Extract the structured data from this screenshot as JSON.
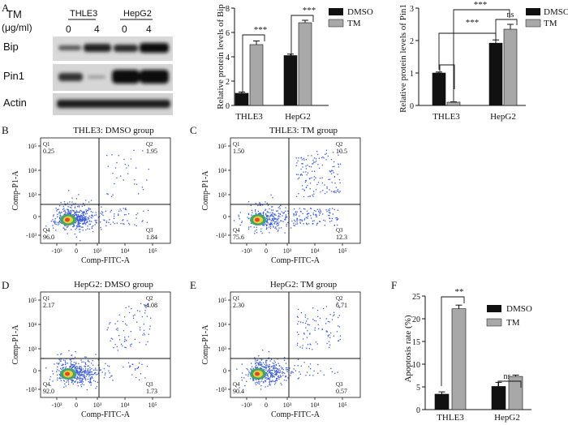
{
  "panels": {
    "A": "A",
    "B": "B",
    "C": "C",
    "D": "D",
    "E": "E",
    "F": "F"
  },
  "western_blot": {
    "tm_label": "TM",
    "unit_label": "(μg/ml)",
    "cell_lines": [
      "THLE3",
      "HepG2"
    ],
    "doses": [
      "0",
      "4",
      "0",
      "4"
    ],
    "proteins": [
      "Bip",
      "Pin1",
      "Actin"
    ]
  },
  "flow": [
    {
      "title": "THLE3: DMSO group",
      "q1_label": "Q1",
      "q1": "0.25",
      "q2_label": "Q2",
      "q2": "1.95",
      "q3_label": "Q3",
      "q3": "1.84",
      "q4_label": "Q4",
      "q4": "96.0",
      "xlabel": "Comp-FITC-A",
      "ylabel": "Comp-P1-A"
    },
    {
      "title": "THLE3: TM group",
      "q1_label": "Q1",
      "q1": "1.50",
      "q2_label": "Q2",
      "q2": "10.5",
      "q3_label": "Q3",
      "q3": "12.3",
      "q4_label": "Q4",
      "q4": "75.6",
      "xlabel": "Comp-FITC-A",
      "ylabel": "Comp-P1-A"
    },
    {
      "title": "HepG2: DMSO group",
      "q1_label": "Q1",
      "q1": "2.17",
      "q2_label": "Q2",
      "q2": "4.08",
      "q3_label": "Q3",
      "q3": "1.73",
      "q4_label": "Q4",
      "q4": "92.0",
      "xlabel": "Comp-FITC-A",
      "ylabel": "Comp-P1-A"
    },
    {
      "title": "HepG2: TM group",
      "q1_label": "Q1",
      "q1": "2.30",
      "q2_label": "Q2",
      "q2": "6.71",
      "q3_label": "Q3",
      "q3": "0.57",
      "q4_label": "Q4",
      "q4": "90.4",
      "xlabel": "Comp-FITC-A",
      "ylabel": "Comp-P1-A"
    }
  ],
  "flow_ticks": {
    "y": [
      "10⁵",
      "10⁴",
      "10³",
      "0",
      "-10³"
    ],
    "x": [
      "-10³",
      "0",
      "10³",
      "10⁴",
      "10⁵"
    ]
  },
  "colors": {
    "dmso": "#111111",
    "tm": "#a8a8a8"
  },
  "chart_data": [
    {
      "type": "bar",
      "ylabel": "Relative protein levels of Bip",
      "categories": [
        "THLE3",
        "HepG2"
      ],
      "series": [
        {
          "name": "DMSO",
          "values": [
            1.0,
            4.1
          ]
        },
        {
          "name": "TM",
          "values": [
            5.0,
            6.8
          ]
        }
      ],
      "errors": [
        [
          0.1,
          0.12
        ],
        [
          0.3,
          0.2
        ]
      ],
      "ylim": [
        0,
        8
      ],
      "yticks": [
        0,
        2,
        4,
        6,
        8
      ],
      "significance": [
        {
          "label": "***",
          "category": "THLE3"
        },
        {
          "label": "***",
          "category": "HepG2"
        }
      ],
      "legend": "top-right"
    },
    {
      "type": "bar",
      "ylabel": "Relative protein levels of Pin1",
      "categories": [
        "THLE3",
        "HepG2"
      ],
      "series": [
        {
          "name": "DMSO",
          "values": [
            1.0,
            1.92
          ]
        },
        {
          "name": "TM",
          "values": [
            0.1,
            2.35
          ]
        }
      ],
      "errors": [
        [
          0.03,
          0.1
        ],
        [
          0.01,
          0.15
        ]
      ],
      "ylim": [
        0,
        3
      ],
      "yticks": [
        0,
        1,
        2,
        3
      ],
      "significance": [
        {
          "label": "***",
          "groups": "THLE3 TM vs HepG2 TM"
        },
        {
          "label": "***",
          "groups": "THLE3 DMSO vs HepG2 DMSO"
        },
        {
          "label": "ns",
          "groups": "HepG2 DMSO vs TM"
        }
      ],
      "legend": "top-right"
    },
    {
      "type": "bar",
      "ylabel": "Apoptosis rate (%)",
      "categories": [
        "THLE3",
        "HepG2"
      ],
      "series": [
        {
          "name": "DMSO",
          "values": [
            3.4,
            5.1
          ]
        },
        {
          "name": "TM",
          "values": [
            22.2,
            7.3
          ]
        }
      ],
      "errors": [
        [
          0.5,
          0.9
        ],
        [
          0.8,
          0.3
        ]
      ],
      "ylim": [
        0,
        25
      ],
      "yticks": [
        0,
        5,
        10,
        15,
        20,
        25
      ],
      "significance": [
        {
          "label": "**",
          "category": "THLE3"
        },
        {
          "label": "ns",
          "category": "HepG2"
        }
      ],
      "legend": "top-right"
    }
  ]
}
